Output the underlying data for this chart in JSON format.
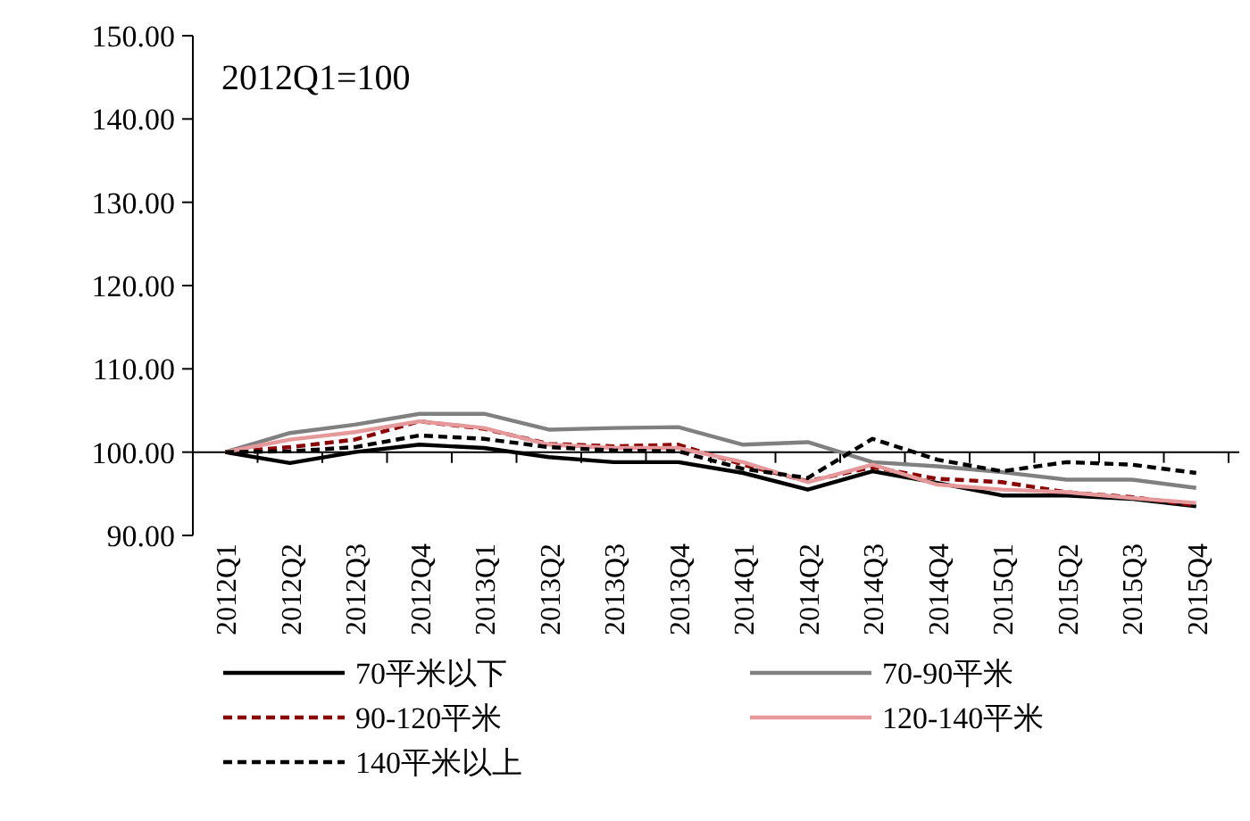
{
  "chart_data": {
    "type": "line",
    "annotations": [
      "2012Q1=100"
    ],
    "categories": [
      "2012Q1",
      "2012Q2",
      "2012Q3",
      "2012Q4",
      "2013Q1",
      "2013Q2",
      "2013Q3",
      "2013Q4",
      "2014Q1",
      "2014Q2",
      "2014Q3",
      "2014Q4",
      "2015Q1",
      "2015Q2",
      "2015Q3",
      "2015Q4"
    ],
    "series": [
      {
        "name": "70平米以下",
        "color": "#000000",
        "line_style": "solid",
        "values": [
          100,
          98.7,
          100,
          100.9,
          100.5,
          99.4,
          98.8,
          98.8,
          97.5,
          95.5,
          97.7,
          96.3,
          94.8,
          94.8,
          94.4,
          93.5
        ]
      },
      {
        "name": "70-90平米",
        "color": "#808080",
        "line_style": "solid",
        "values": [
          100,
          102.3,
          103.3,
          104.6,
          104.6,
          102.7,
          102.9,
          103,
          100.9,
          101.2,
          98.8,
          98.3,
          97.6,
          96.7,
          96.7,
          95.7
        ]
      },
      {
        "name": "90-120平米",
        "color": "#8b0000",
        "line_style": "dashed",
        "values": [
          100,
          100.6,
          101.5,
          103.7,
          102.8,
          101,
          100.7,
          100.9,
          98.5,
          96.5,
          98.2,
          96.8,
          96.4,
          95.2,
          94.6,
          93.6
        ]
      },
      {
        "name": "120-140平米",
        "color": "#e6999a",
        "line_style": "solid",
        "values": [
          100,
          101.5,
          102.4,
          103.7,
          102.9,
          100.9,
          100.5,
          100.5,
          98.8,
          96.4,
          98.5,
          96.1,
          95.5,
          95.2,
          94.5,
          93.9
        ]
      },
      {
        "name": "140平米以上",
        "color": "#000000",
        "line_style": "dashed",
        "values": [
          100,
          100.1,
          100.6,
          102,
          101.6,
          100.6,
          100.2,
          100.1,
          98,
          96.9,
          101.6,
          99.1,
          97.7,
          98.8,
          98.5,
          97.5
        ]
      }
    ],
    "ylim": [
      90,
      150
    ],
    "yticks": [
      {
        "value": 90,
        "label": "90.00"
      },
      {
        "value": 100,
        "label": "100.00"
      },
      {
        "value": 110,
        "label": "110.00"
      },
      {
        "value": 120,
        "label": "120.00"
      },
      {
        "value": 130,
        "label": "130.00"
      },
      {
        "value": 140,
        "label": "140.00"
      },
      {
        "value": 150,
        "label": "150.00"
      }
    ],
    "ref_lines": [
      {
        "axis": "y",
        "value": 100,
        "color": "#000000"
      }
    ],
    "grid": false,
    "legend": "bottom",
    "marker": "none"
  }
}
